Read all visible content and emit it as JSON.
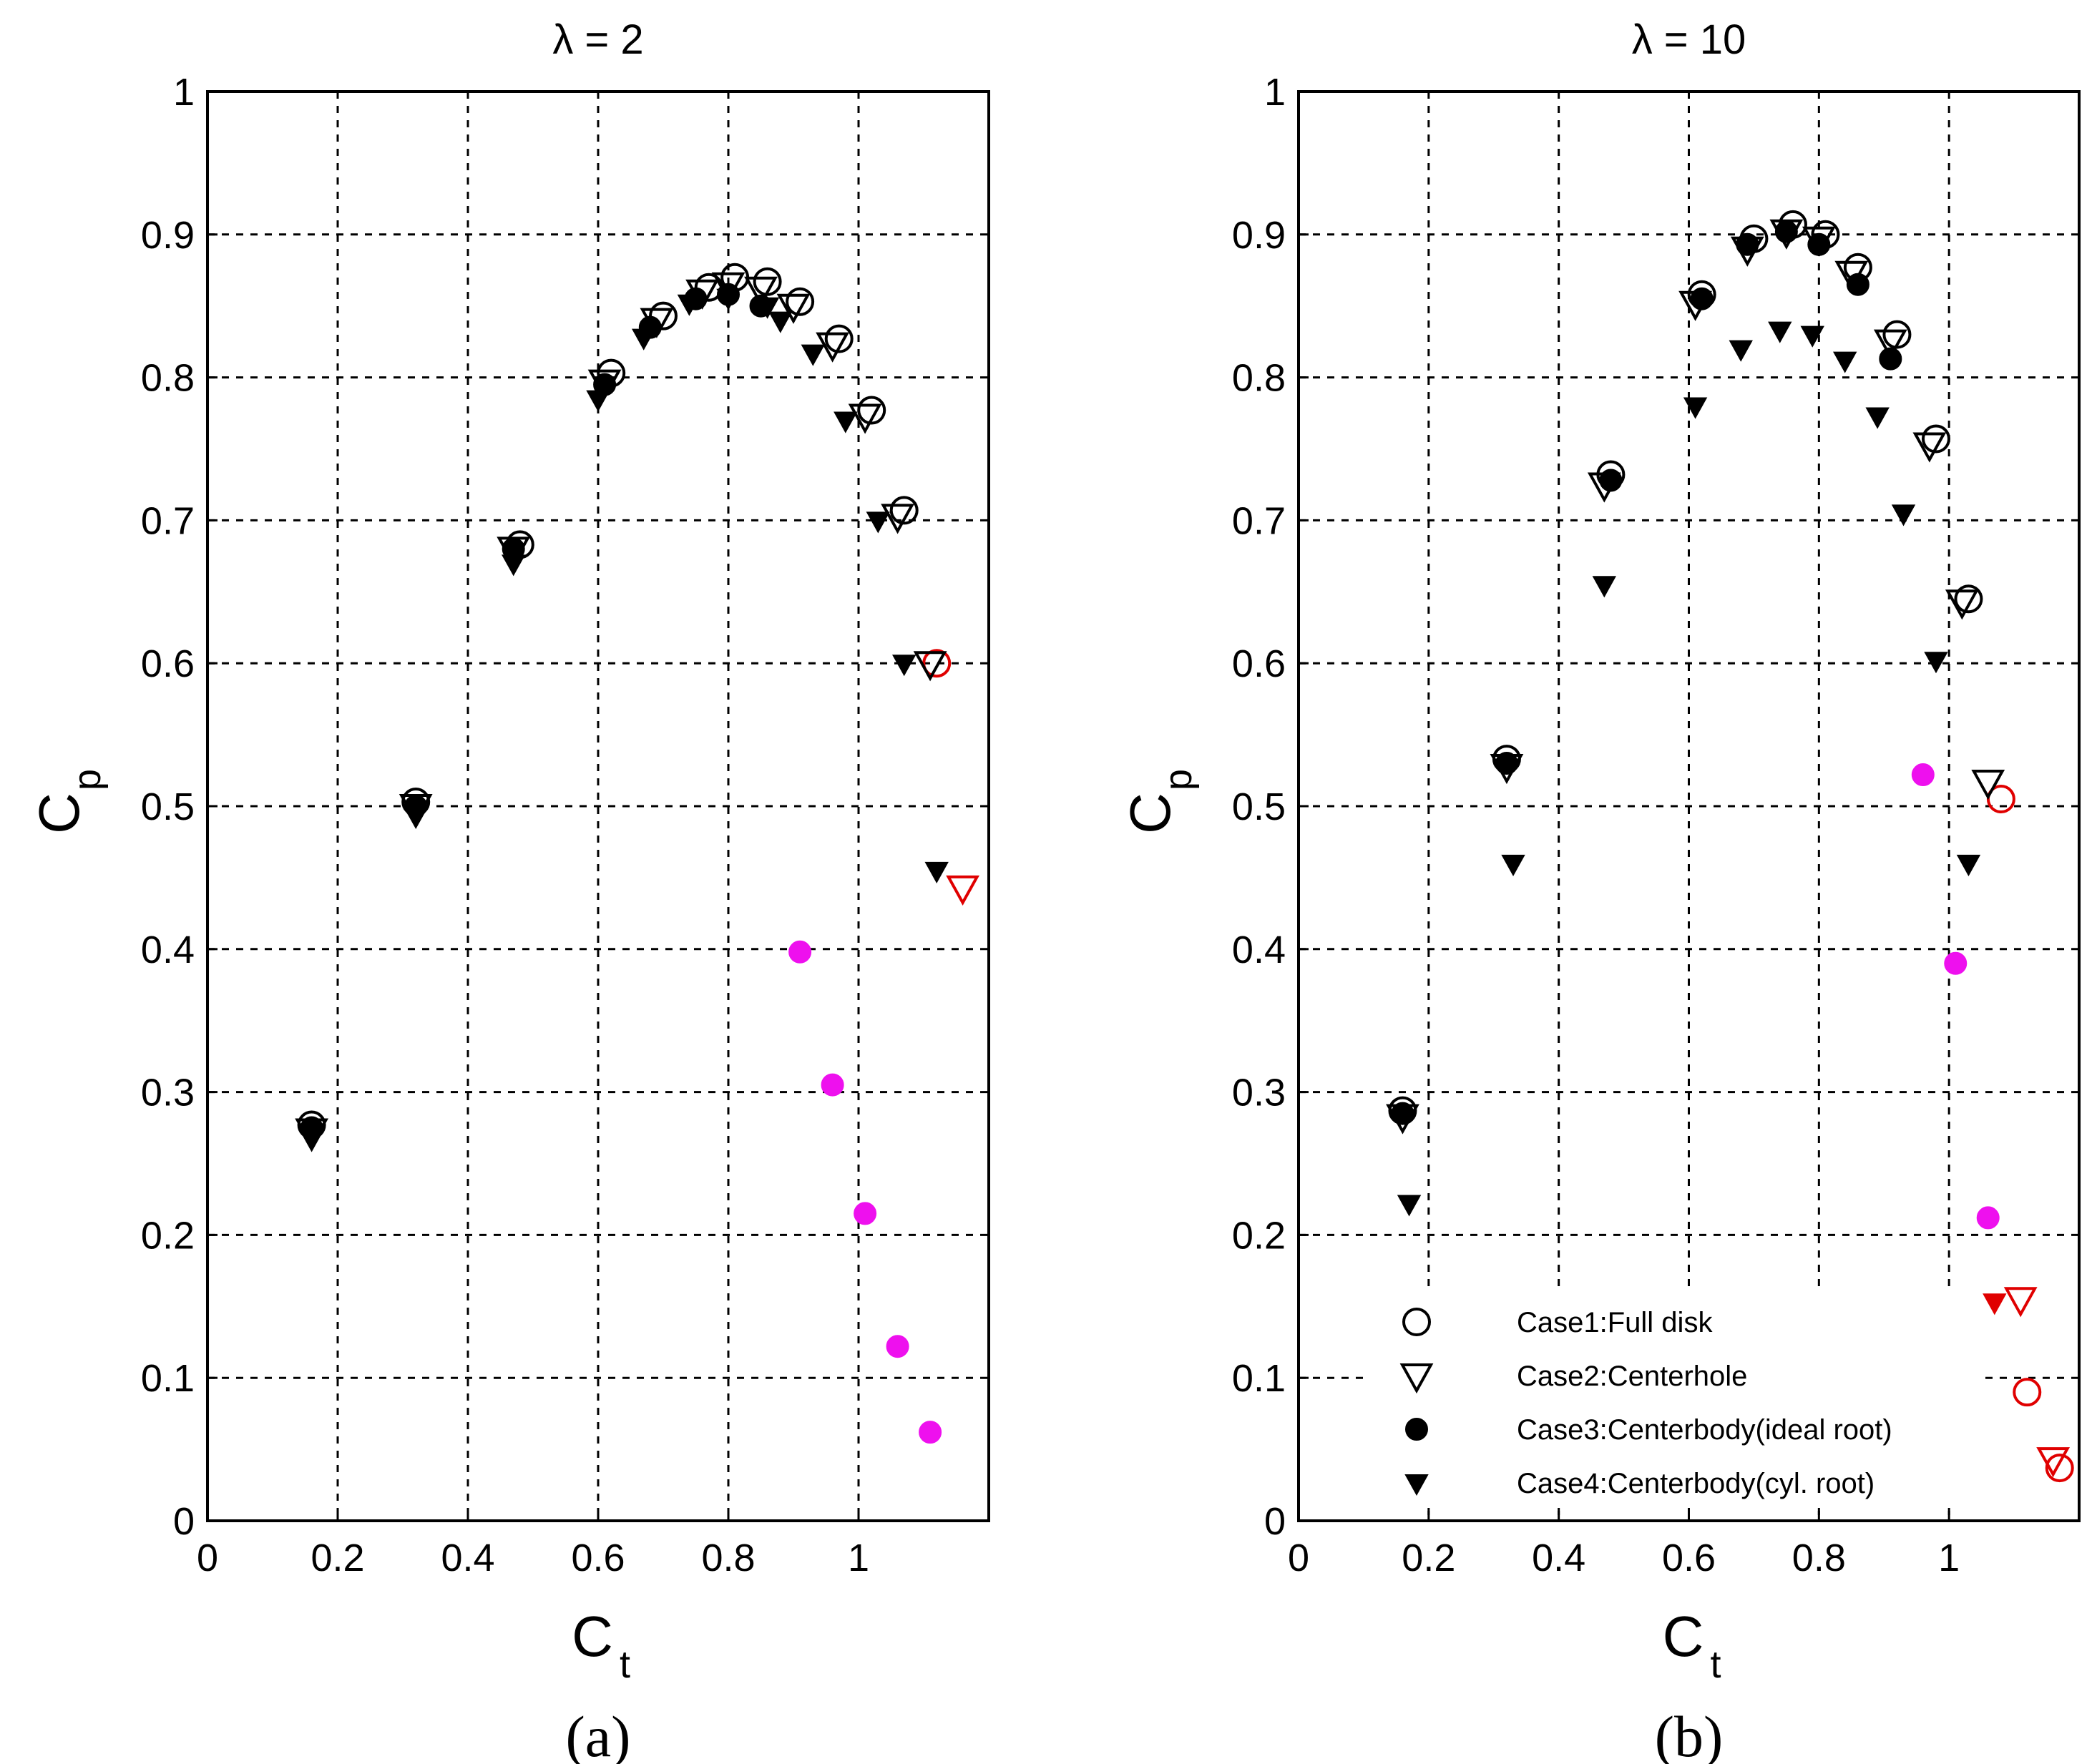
{
  "chart_data": [
    {
      "type": "scatter",
      "panel": "(a)",
      "title": "λ = 2",
      "xlabel": "C",
      "xlabel_sub": "t",
      "ylabel": "C",
      "ylabel_sub": "p",
      "xlim": [
        0,
        1.2
      ],
      "ylim": [
        0,
        1
      ],
      "xticks": [
        0,
        0.2,
        0.4,
        0.6,
        0.8,
        1
      ],
      "xtick_labels": [
        "0",
        "0.2",
        "0.4",
        "0.6",
        "0.8",
        "1"
      ],
      "yticks": [
        0,
        0.1,
        0.2,
        0.3,
        0.4,
        0.5,
        0.6,
        0.7,
        0.8,
        0.9,
        1
      ],
      "ytick_labels": [
        "0",
        "0.1",
        "0.2",
        "0.3",
        "0.4",
        "0.5",
        "0.6",
        "0.7",
        "0.8",
        "0.9",
        "1"
      ],
      "grid": true,
      "series": [
        {
          "name": "Case1:Full disk",
          "marker": "circle-open",
          "points": [
            [
              0.16,
              0.277
            ],
            [
              0.32,
              0.503
            ],
            [
              0.48,
              0.683
            ],
            [
              0.62,
              0.803
            ],
            [
              0.7,
              0.843
            ],
            [
              0.77,
              0.863
            ],
            [
              0.81,
              0.87
            ],
            [
              0.86,
              0.867
            ],
            [
              0.91,
              0.853
            ],
            [
              0.97,
              0.827
            ],
            [
              1.02,
              0.777
            ],
            [
              1.07,
              0.707
            ],
            [
              1.12,
              0.6
            ]
          ],
          "highlight": {
            "12": "#e00000"
          }
        },
        {
          "name": "Case2:Centerhole",
          "marker": "triangle-open",
          "points": [
            [
              0.16,
              0.273
            ],
            [
              0.32,
              0.5
            ],
            [
              0.47,
              0.68
            ],
            [
              0.61,
              0.797
            ],
            [
              0.69,
              0.84
            ],
            [
              0.76,
              0.86
            ],
            [
              0.8,
              0.865
            ],
            [
              0.85,
              0.862
            ],
            [
              0.9,
              0.85
            ],
            [
              0.96,
              0.823
            ],
            [
              1.01,
              0.773
            ],
            [
              1.06,
              0.703
            ],
            [
              1.11,
              0.6
            ],
            [
              1.16,
              0.443
            ]
          ],
          "highlight": {
            "13": "#e00000"
          }
        },
        {
          "name": "Case3:Centerbody(ideal root)",
          "marker": "circle-filled",
          "points": [
            [
              0.16,
              0.275
            ],
            [
              0.32,
              0.5
            ],
            [
              0.47,
              0.68
            ],
            [
              0.61,
              0.795
            ],
            [
              0.68,
              0.835
            ],
            [
              0.75,
              0.855
            ],
            [
              0.8,
              0.858
            ],
            [
              0.85,
              0.85
            ],
            [
              0.91,
              0.398
            ],
            [
              0.96,
              0.305
            ],
            [
              1.01,
              0.215
            ],
            [
              1.06,
              0.122
            ],
            [
              1.11,
              0.062
            ]
          ],
          "highlight": {
            "8": "#ee10ee",
            "9": "#ee10ee",
            "10": "#ee10ee",
            "11": "#ee10ee",
            "12": "#ee10ee"
          }
        },
        {
          "name": "Case4:Centerbody(cyl. root)",
          "marker": "triangle-filled",
          "points": [
            [
              0.16,
              0.267
            ],
            [
              0.32,
              0.493
            ],
            [
              0.47,
              0.67
            ],
            [
              0.6,
              0.785
            ],
            [
              0.67,
              0.828
            ],
            [
              0.74,
              0.852
            ],
            [
              0.8,
              0.856
            ],
            [
              0.86,
              0.85
            ],
            [
              0.88,
              0.84
            ],
            [
              0.93,
              0.817
            ],
            [
              0.98,
              0.77
            ],
            [
              1.03,
              0.7
            ],
            [
              1.07,
              0.6
            ],
            [
              1.12,
              0.455
            ]
          ],
          "highlight": {}
        }
      ]
    },
    {
      "type": "scatter",
      "panel": "(b)",
      "title": "λ = 10",
      "xlabel": "C",
      "xlabel_sub": "t",
      "ylabel": "C",
      "ylabel_sub": "p",
      "xlim": [
        0,
        1.2
      ],
      "ylim": [
        0,
        1
      ],
      "xticks": [
        0,
        0.2,
        0.4,
        0.6,
        0.8,
        1
      ],
      "xtick_labels": [
        "0",
        "0.2",
        "0.4",
        "0.6",
        "0.8",
        "1"
      ],
      "yticks": [
        0,
        0.1,
        0.2,
        0.3,
        0.4,
        0.5,
        0.6,
        0.7,
        0.8,
        0.9,
        1
      ],
      "ytick_labels": [
        "0",
        "0.1",
        "0.2",
        "0.3",
        "0.4",
        "0.5",
        "0.6",
        "0.7",
        "0.8",
        "0.9",
        "1"
      ],
      "grid": true,
      "legend_position": "bottom-right",
      "series": [
        {
          "name": "Case1:Full disk",
          "marker": "circle-open",
          "points": [
            [
              0.16,
              0.287
            ],
            [
              0.32,
              0.533
            ],
            [
              0.48,
              0.732
            ],
            [
              0.62,
              0.858
            ],
            [
              0.7,
              0.897
            ],
            [
              0.76,
              0.907
            ],
            [
              0.81,
              0.9
            ],
            [
              0.86,
              0.877
            ],
            [
              0.92,
              0.83
            ],
            [
              0.98,
              0.757
            ],
            [
              1.03,
              0.645
            ],
            [
              1.08,
              0.505
            ],
            [
              1.12,
              0.09
            ],
            [
              1.17,
              0.037
            ]
          ],
          "highlight": {
            "11": "#e00000",
            "12": "#e00000",
            "13": "#e00000"
          }
        },
        {
          "name": "Case2:Centerhole",
          "marker": "triangle-open",
          "points": [
            [
              0.16,
              0.283
            ],
            [
              0.32,
              0.528
            ],
            [
              0.47,
              0.725
            ],
            [
              0.61,
              0.852
            ],
            [
              0.69,
              0.89
            ],
            [
              0.75,
              0.902
            ],
            [
              0.8,
              0.897
            ],
            [
              0.85,
              0.873
            ],
            [
              0.91,
              0.825
            ],
            [
              0.97,
              0.753
            ],
            [
              1.02,
              0.643
            ],
            [
              1.06,
              0.517
            ],
            [
              1.11,
              0.155
            ],
            [
              1.16,
              0.043
            ]
          ],
          "highlight": {
            "12": "#e00000",
            "13": "#e00000"
          }
        },
        {
          "name": "Case3:Centerbody(ideal root)",
          "marker": "circle-filled",
          "points": [
            [
              0.16,
              0.285
            ],
            [
              0.32,
              0.53
            ],
            [
              0.48,
              0.728
            ],
            [
              0.62,
              0.855
            ],
            [
              0.69,
              0.893
            ],
            [
              0.75,
              0.902
            ],
            [
              0.8,
              0.893
            ],
            [
              0.86,
              0.865
            ],
            [
              0.91,
              0.813
            ],
            [
              0.96,
              0.522
            ],
            [
              1.01,
              0.39
            ],
            [
              1.06,
              0.212
            ]
          ],
          "highlight": {
            "9": "#ee10ee",
            "10": "#ee10ee",
            "11": "#ee10ee"
          }
        },
        {
          "name": "Case4:Centerbody(cyl. root)",
          "marker": "triangle-filled",
          "points": [
            [
              0.17,
              0.222
            ],
            [
              0.33,
              0.46
            ],
            [
              0.47,
              0.655
            ],
            [
              0.61,
              0.78
            ],
            [
              0.68,
              0.82
            ],
            [
              0.74,
              0.833
            ],
            [
              0.79,
              0.83
            ],
            [
              0.84,
              0.812
            ],
            [
              0.89,
              0.773
            ],
            [
              0.93,
              0.705
            ],
            [
              0.98,
              0.602
            ],
            [
              1.03,
              0.46
            ],
            [
              1.07,
              0.153
            ]
          ],
          "highlight": {
            "12": "#e00000"
          }
        }
      ]
    }
  ],
  "legend": [
    {
      "marker": "circle-open",
      "label": "Case1:Full disk"
    },
    {
      "marker": "triangle-open",
      "label": "Case2:Centerhole"
    },
    {
      "marker": "circle-filled",
      "label": "Case3:Centerbody(ideal root)"
    },
    {
      "marker": "triangle-filled",
      "label": "Case4:Centerbody(cyl. root)"
    }
  ],
  "colors": {
    "default": "#000000",
    "red": "#e00000",
    "magenta": "#ee10ee"
  }
}
